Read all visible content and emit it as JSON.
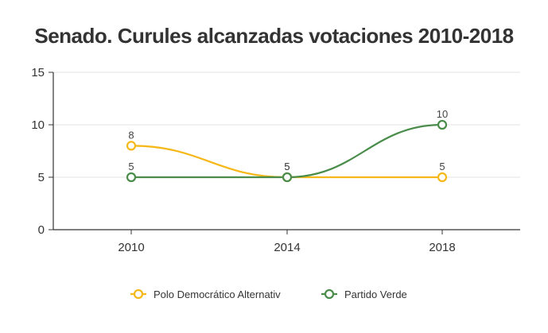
{
  "chart_data": {
    "type": "line",
    "title": "Senado. Curules alcanzadas votaciones 2010-2018",
    "xlabel": "",
    "ylabel": "",
    "categories": [
      "2010",
      "2014",
      "2018"
    ],
    "ylim": [
      0,
      15
    ],
    "yticks": [
      0,
      5,
      10,
      15
    ],
    "grid": true,
    "legend": "bottom",
    "series": [
      {
        "name": "Polo Democrático Alternativ",
        "values": [
          8,
          5,
          5
        ],
        "color": "#f5b818"
      },
      {
        "name": "Partido Verde",
        "values": [
          5,
          5,
          10
        ],
        "color": "#4a8c4a"
      }
    ]
  }
}
